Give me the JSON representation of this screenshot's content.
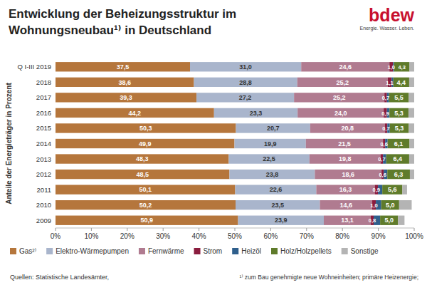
{
  "chart_data": {
    "type": "bar",
    "orientation": "horizontal",
    "stacked": true,
    "data_labels": true,
    "grid": false,
    "legend": "bottom",
    "title": "Entwicklung der Beheizungsstruktur im Wohnungsneubau¹⁾ in Deutschland",
    "logo": {
      "name": "bdew",
      "tagline": "Energie. Wasser. Leben."
    },
    "y_label": "Anteile der Energieträger in Prozent",
    "sources": "Quellen: Statistische Landesämter,",
    "footnote": "¹⁾ zum Bau genehmigte neue Wohneinheiten; primäre Heizenergie;",
    "categories": [
      "Q I-III 2019",
      "2018",
      "2017",
      "2016",
      "2015",
      "2014",
      "2013",
      "2012",
      "2011",
      "2010",
      "2009"
    ],
    "xlim": [
      0,
      100
    ],
    "xticks": [
      {
        "value": 0,
        "label": "0%"
      },
      {
        "value": 10,
        "label": "10%"
      },
      {
        "value": 20,
        "label": "20%"
      },
      {
        "value": 30,
        "label": "30%"
      },
      {
        "value": 40,
        "label": "40%"
      },
      {
        "value": 50,
        "label": "50%"
      },
      {
        "value": 60,
        "label": "60%"
      },
      {
        "value": 70,
        "label": "70%"
      },
      {
        "value": 80,
        "label": "80%"
      },
      {
        "value": 90,
        "label": "90%"
      },
      {
        "value": 100,
        "label": "100%"
      }
    ],
    "series": [
      {
        "name": "Gas²⁾",
        "color": "#b5763c",
        "values": [
          37.5,
          38.6,
          39.3,
          44.2,
          50.3,
          49.9,
          48.3,
          48.5,
          50.1,
          50.2,
          50.9
        ],
        "value_labels": [
          "37,5",
          "38,6",
          "39,3",
          "44,2",
          "50,3",
          "49,9",
          "48,3",
          "48,5",
          "50,1",
          "50,2",
          "50,9"
        ]
      },
      {
        "name": "Elektro-Wärmepumpen",
        "color": "#a9b5cc",
        "values": [
          31.0,
          28.8,
          27.2,
          23.3,
          20.7,
          19.9,
          22.5,
          23.8,
          22.6,
          23.5,
          23.9
        ],
        "value_labels": [
          "31,0",
          "28,8",
          "27,2",
          "23,3",
          "20,7",
          "19,9",
          "22,5",
          "23,8",
          "22,6",
          "23,5",
          "23,9"
        ]
      },
      {
        "name": "Fernwärme",
        "color": "#b07b90",
        "values": [
          24.6,
          25.2,
          25.2,
          24.0,
          20.8,
          21.5,
          19.8,
          18.6,
          16.3,
          14.6,
          13.1
        ],
        "value_labels": [
          "24,6",
          "25,2",
          "25,2",
          "24,0",
          "20,8",
          "21,5",
          "19,8",
          "18,6",
          "16,3",
          "14,6",
          "13,1"
        ]
      },
      {
        "name": "Strom",
        "color": "#8a1c3e",
        "values": [
          1.0,
          1.1,
          0.7,
          0.9,
          0.7,
          0.6,
          0.7,
          0.6,
          0.9,
          1.0,
          0.8
        ],
        "value_labels": [
          "1,0",
          "1,1",
          "0,7",
          "0,9",
          "0,7",
          "0,6",
          "0,7",
          "0,6",
          "0,9",
          "1,0",
          "0,8"
        ]
      },
      {
        "name": "Heizöl",
        "color": "#2f5f8c",
        "data_labels": false,
        "values": [
          0.3,
          0.5,
          0.6,
          0.7,
          0.7,
          0.7,
          0.9,
          1.0,
          1.2,
          1.5,
          1.8
        ]
      },
      {
        "name": "Holz/Holzpellets",
        "color": "#5f7b2b",
        "values": [
          4.3,
          4.4,
          5.5,
          5.3,
          5.3,
          6.1,
          6.4,
          6.3,
          5.6,
          5.0,
          5.0
        ],
        "value_labels": [
          "4,3",
          "4,4",
          "5,5",
          "5,3",
          "5,3",
          "6,1",
          "6,4",
          "6,3",
          "5,6",
          "5,0",
          "5,0"
        ]
      },
      {
        "name": "Sonstige",
        "color": "#b4b4b4",
        "data_labels": false,
        "values": [
          1.3,
          1.4,
          1.5,
          1.6,
          1.5,
          1.3,
          1.4,
          1.2,
          1.3,
          3.5,
          1.8
        ]
      }
    ]
  }
}
